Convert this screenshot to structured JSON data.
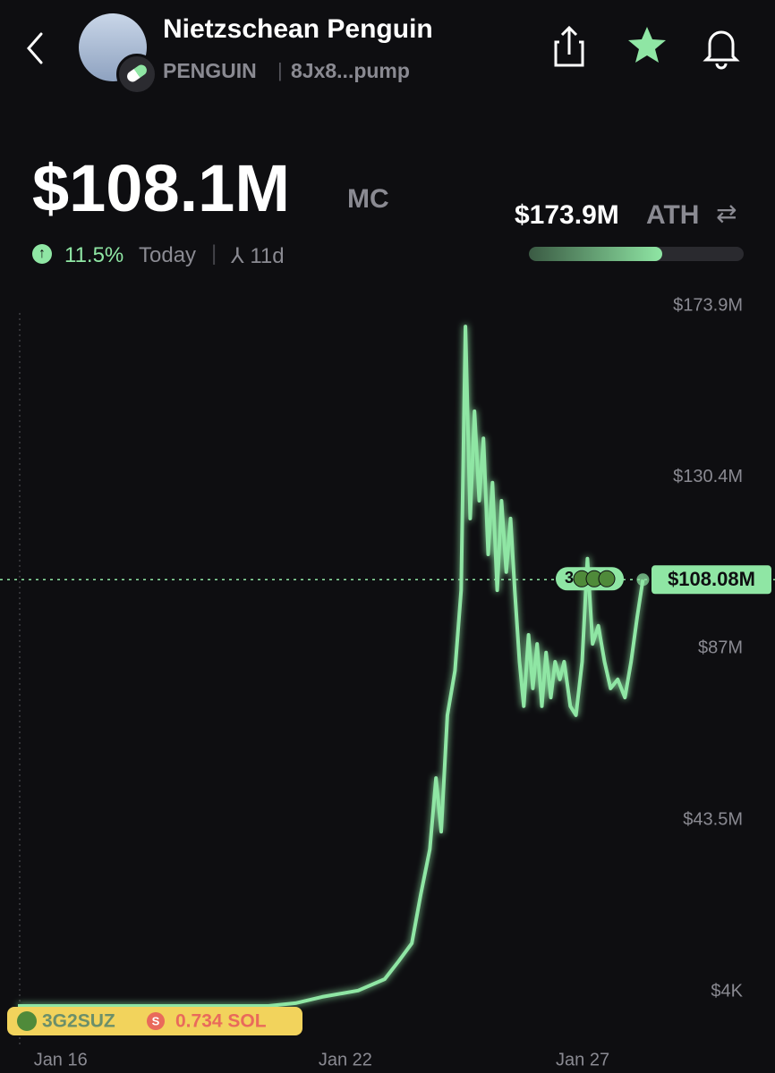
{
  "header": {
    "title": "Nietzschean Penguin",
    "ticker": "PENGUIN",
    "address": "8Jx8...pump"
  },
  "stats": {
    "market_cap": {
      "value": 108.1,
      "label": "$108.1M"
    },
    "market_cap_unit": "MC",
    "change": "11.5%",
    "period": "Today",
    "age": "11d",
    "ath": {
      "value": 173.9,
      "label": "$173.9M"
    },
    "ath_unit": "ATH"
  },
  "chart_data": {
    "type": "line",
    "color": "#8fe6a4",
    "x": [
      -0.9,
      4.38,
      4.95,
      5.51,
      6.27,
      6.83,
      7.12,
      7.4,
      7.59,
      7.78,
      7.91,
      8.02,
      8.15,
      8.31,
      8.44,
      8.53,
      8.63,
      8.72,
      8.82,
      8.91,
      9.01,
      9.1,
      9.2,
      9.29,
      9.39,
      9.48,
      9.57,
      9.67,
      9.76,
      9.86,
      9.95,
      10.04,
      10.14,
      10.23,
      10.33,
      10.42,
      10.52,
      10.61,
      10.74,
      10.86,
      10.99,
      11.1,
      11.21,
      11.33,
      11.46,
      11.59,
      11.74,
      11.89,
      12.02,
      12.15,
      12.27
    ],
    "values": [
      0,
      0,
      0.7,
      2.3,
      3.9,
      6.8,
      11.3,
      15.9,
      28.3,
      39.7,
      57.8,
      44.2,
      73.7,
      85,
      105.4,
      172.3,
      123.6,
      150.8,
      128.1,
      143.9,
      114.5,
      132.7,
      105.4,
      128.1,
      110,
      123.6,
      105.4,
      87.3,
      76,
      94.1,
      80.5,
      91.8,
      76,
      89.6,
      78.2,
      87.3,
      82.8,
      87.3,
      76,
      73.7,
      87.3,
      113.4,
      91.8,
      96.4,
      87.3,
      80.5,
      82.8,
      78.2,
      87.3,
      98.6,
      108.08
    ],
    "xlim": [
      -0.9,
      12.3
    ],
    "xticks": [
      {
        "value": 0,
        "label": "Jan 16"
      },
      {
        "value": 6,
        "label": "Jan 22"
      },
      {
        "value": 11,
        "label": "Jan 27"
      }
    ],
    "ylim": [
      0,
      173.9
    ],
    "yticks": [
      {
        "value": 173.9,
        "label": "$173.9M"
      },
      {
        "value": 130.4,
        "label": "$130.4M"
      },
      {
        "value": 87,
        "label": "$87M"
      },
      {
        "value": 43.5,
        "label": "$43.5M"
      },
      {
        "value": 0.004,
        "label": "$4K"
      }
    ],
    "price_line": {
      "value": 108.08,
      "label": "$108.08M"
    },
    "marker_count": "3",
    "trade": {
      "trader": "3G2SUZ",
      "icon": "S",
      "amount": "0.734 SOL"
    }
  }
}
